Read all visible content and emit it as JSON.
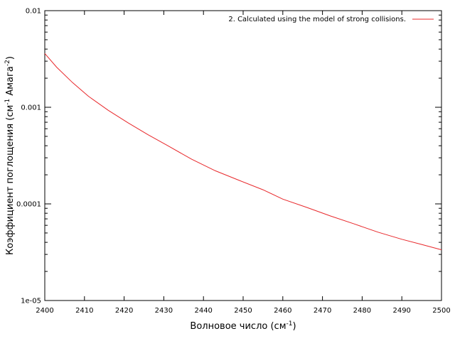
{
  "chart_data": {
    "type": "line",
    "title": "",
    "xlabel": {
      "main": "Волновое число (см",
      "sup": "-1",
      "tail": ")"
    },
    "ylabel": {
      "p1": "Коэффициент поглощения (см",
      "s1": "-1",
      "p2": " Амага",
      "s2": "-2",
      "p3": ")"
    },
    "xlim": [
      2400,
      2500
    ],
    "ylim": [
      1e-05,
      0.01
    ],
    "yscale": "log",
    "grid": false,
    "legend_position": "top-right",
    "x_ticks": [
      "2400",
      "2410",
      "2420",
      "2430",
      "2440",
      "2450",
      "2460",
      "2470",
      "2480",
      "2490",
      "2500"
    ],
    "y_ticks": [
      {
        "value": 0.01,
        "label": "0.01"
      },
      {
        "value": 0.001,
        "label": "0.001"
      },
      {
        "value": 0.0001,
        "label": "0.0001"
      },
      {
        "value": 1e-05,
        "label": "1e-05"
      }
    ],
    "series": [
      {
        "name": "2. Calculated using the model of strong collisions.",
        "color": "#e8282b",
        "x": [
          2400,
          2403,
          2407,
          2411,
          2416,
          2421,
          2426,
          2431,
          2437,
          2443,
          2449,
          2455,
          2460,
          2466,
          2472,
          2478,
          2484,
          2490,
          2495,
          2500
        ],
        "y": [
          0.0036,
          0.0026,
          0.0018,
          0.0013,
          0.00093,
          0.00069,
          0.00052,
          0.0004,
          0.00029,
          0.00022,
          0.000175,
          0.00014,
          0.000112,
          9.2e-05,
          7.5e-05,
          6.2e-05,
          5.1e-05,
          4.3e-05,
          3.8e-05,
          3.35e-05
        ]
      }
    ]
  }
}
